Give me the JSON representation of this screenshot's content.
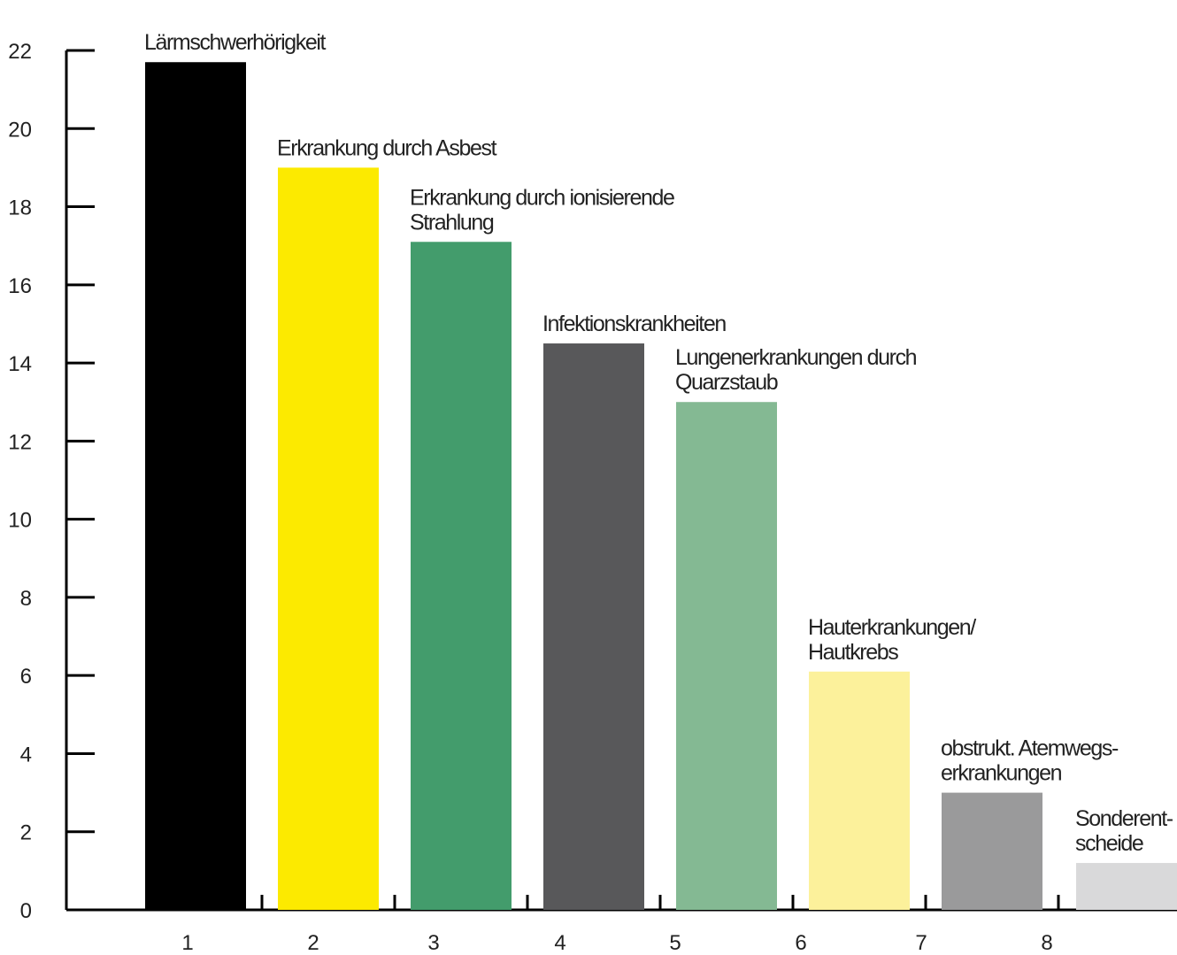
{
  "chart_data": {
    "type": "bar",
    "title": "",
    "xlabel": "",
    "ylabel": "",
    "ylim": [
      0,
      22
    ],
    "yticks": [
      0,
      2,
      4,
      6,
      8,
      10,
      12,
      14,
      16,
      18,
      20,
      22
    ],
    "xticks": [
      "1",
      "2",
      "3",
      "4",
      "5",
      "6",
      "7",
      "8"
    ],
    "grid": false,
    "legend": "none",
    "bars": [
      {
        "label": [
          "Lärmschwerhörigkeit"
        ],
        "value": 21.7,
        "color": "#000000"
      },
      {
        "label": [
          "Erkrankung durch Asbest"
        ],
        "value": 19.0,
        "color": "#FCEA00"
      },
      {
        "label": [
          "Erkrankung durch ionisierende",
          "Strahlung"
        ],
        "value": 17.1,
        "color": "#439C6C"
      },
      {
        "label": [
          "Infektionskrankheiten"
        ],
        "value": 14.5,
        "color": "#58585A"
      },
      {
        "label": [
          "Lungenerkrankungen durch",
          "Quarzstaub"
        ],
        "value": 13.0,
        "color": "#84B993"
      },
      {
        "label": [
          "Hauterkrankungen/",
          "Hautkrebs"
        ],
        "value": 6.1,
        "color": "#FCF19B"
      },
      {
        "label": [
          "obstrukt. Atemwegs-",
          "erkrankungen"
        ],
        "value": 3.0,
        "color": "#9A9A9B"
      },
      {
        "label": [
          "Sonderent-",
          "scheide"
        ],
        "value": 1.2,
        "color": "#D9D9DA"
      }
    ],
    "axis_color": "#000000"
  }
}
